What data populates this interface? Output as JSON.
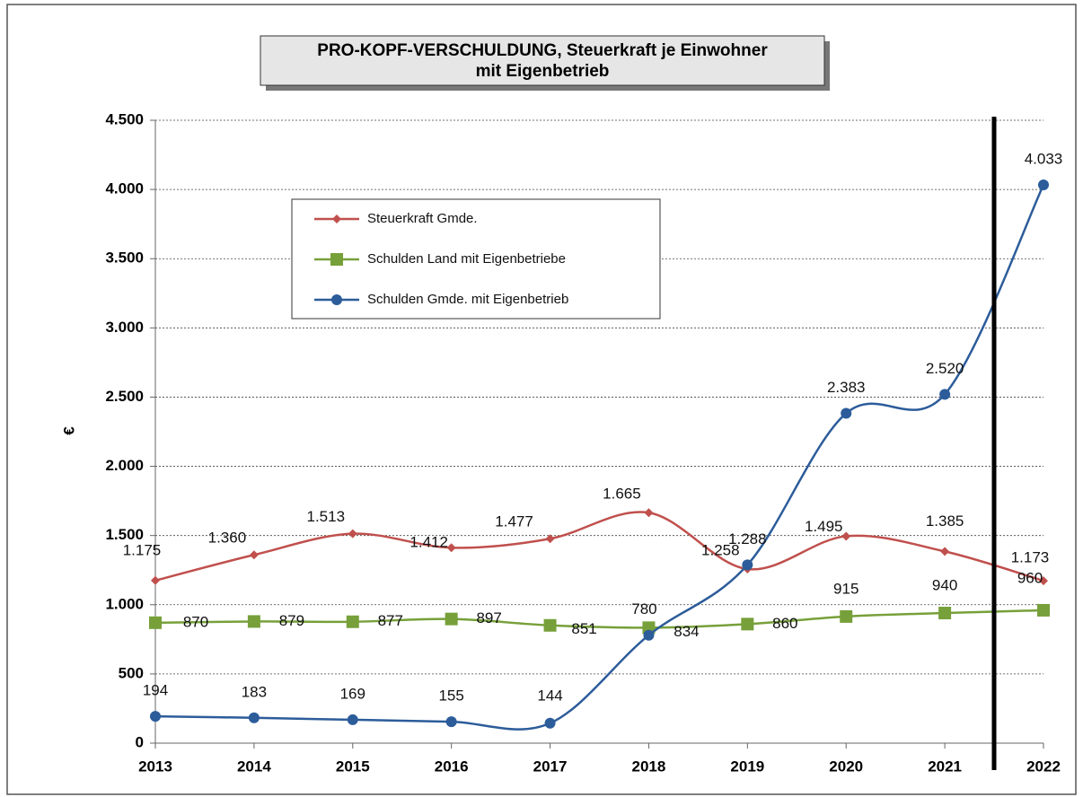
{
  "chart_data": {
    "type": "line",
    "title": "PRO-KOPF-VERSCHULDUNG, Steuerkraft je Einwohner",
    "subtitle": "mit Eigenbetrieb",
    "y_label": "€",
    "categories": [
      "2013",
      "2014",
      "2015",
      "2016",
      "2017",
      "2018",
      "2019",
      "2020",
      "2021",
      "2022"
    ],
    "series": [
      {
        "name": "Steuerkraft Gmde.",
        "color": "#c0504d",
        "marker": "diamond",
        "values": [
          1175,
          1360,
          1513,
          1412,
          1477,
          1665,
          1258,
          1495,
          1385,
          1173
        ],
        "value_labels": [
          "1.175",
          "1.360",
          "1.513",
          "1.412",
          "1.477",
          "1.665",
          "1.258",
          "1.495",
          "1.385",
          "1.173"
        ]
      },
      {
        "name": "Schulden Land mit Eigenbetriebe",
        "color": "#77a03a",
        "marker": "square",
        "values": [
          870,
          879,
          877,
          897,
          851,
          834,
          860,
          915,
          940,
          960
        ],
        "value_labels": [
          "870",
          "879",
          "877",
          "897",
          "851",
          "834",
          "860",
          "915",
          "940",
          "960"
        ]
      },
      {
        "name": "Schulden Gmde. mit Eigenbetrieb",
        "color": "#2c5c9a",
        "marker": "circle",
        "values": [
          194,
          183,
          169,
          155,
          144,
          780,
          1288,
          2383,
          2520,
          4033
        ],
        "value_labels": [
          "194",
          "183",
          "169",
          "155",
          "144",
          "780",
          "1.288",
          "2.383",
          "2.520",
          "4.033"
        ]
      }
    ],
    "ylim": [
      0,
      4500
    ],
    "yticks": [
      0,
      500,
      {
        "value": 1000,
        "label": "1.000"
      },
      {
        "value": 1500,
        "label": "1.500"
      },
      {
        "value": 2000,
        "label": "2.000"
      },
      {
        "value": 2500,
        "label": "2.500"
      },
      {
        "value": 3000,
        "label": "3.000"
      },
      {
        "value": 3500,
        "label": "3.500"
      },
      {
        "value": 4000,
        "label": "4.000"
      },
      {
        "value": 4500,
        "label": "4.500"
      }
    ],
    "grid": true
  }
}
